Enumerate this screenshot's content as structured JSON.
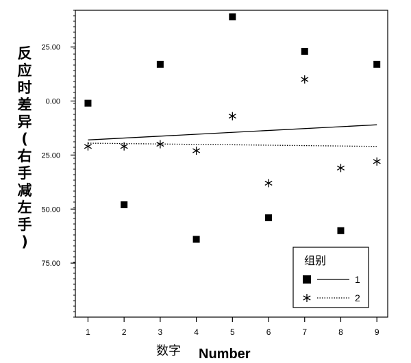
{
  "chart_data": {
    "type": "scatter",
    "xlabel_cn": "数字",
    "xlabel_en": "Number",
    "ylabel": "反应时差异(右手减左手)",
    "x_ticks": [
      1,
      2,
      3,
      4,
      5,
      6,
      7,
      8,
      9
    ],
    "y_tick_labels": [
      "25.00",
      "0.00",
      "25.00",
      "50.00",
      "75.00"
    ],
    "y_tick_values": [
      25,
      0,
      -25,
      -50,
      -75
    ],
    "ylim": [
      -100,
      42
    ],
    "xlim": [
      0.65,
      9.3
    ],
    "grid": false,
    "legend": {
      "title": "组别",
      "position": "bottom-right",
      "entries": [
        "1",
        "2"
      ]
    },
    "series": [
      {
        "name": "1",
        "marker": "square",
        "line": "solid",
        "x": [
          1,
          2,
          3,
          4,
          5,
          6,
          7,
          8,
          9
        ],
        "y": [
          -1,
          -48,
          17,
          -64,
          39,
          -54,
          23,
          -60,
          17
        ],
        "fit": [
          [
            1,
            -18
          ],
          [
            9,
            -11
          ]
        ]
      },
      {
        "name": "2",
        "marker": "asterisk",
        "line": "dotted",
        "x": [
          1,
          2,
          3,
          4,
          5,
          6,
          7,
          8,
          9
        ],
        "y": [
          -21,
          -21,
          -20,
          -23,
          -7,
          -38,
          10,
          -31,
          -28
        ],
        "fit": [
          [
            1,
            -19.5
          ],
          [
            9,
            -21
          ]
        ]
      }
    ]
  }
}
